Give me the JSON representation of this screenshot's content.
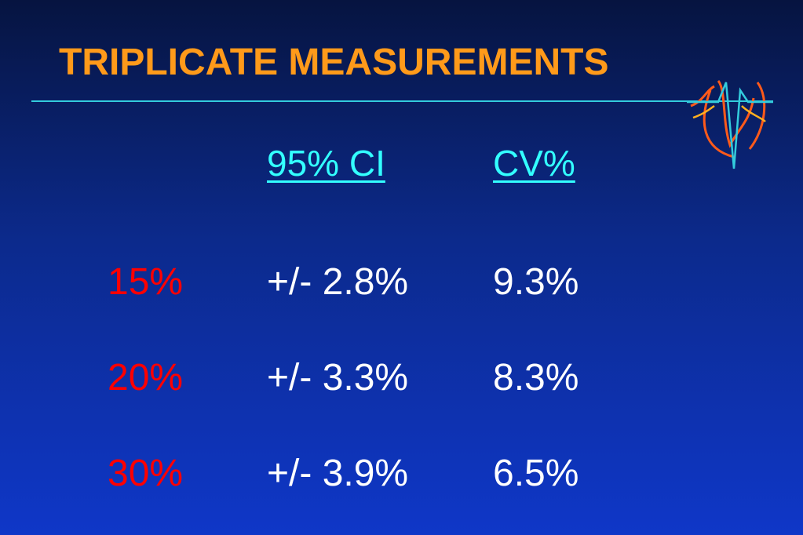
{
  "header": {
    "title": "TRIPLICATE MEASUREMENTS"
  },
  "table": {
    "columns": [
      "95% CI",
      "CV%"
    ],
    "rows": [
      [
        "15%",
        "+/- 2.8%",
        "9.3%"
      ],
      [
        "20%",
        "+/- 3.3%",
        "8.3%"
      ],
      [
        "30%",
        "+/- 3.9%",
        "6.5%"
      ]
    ]
  }
}
